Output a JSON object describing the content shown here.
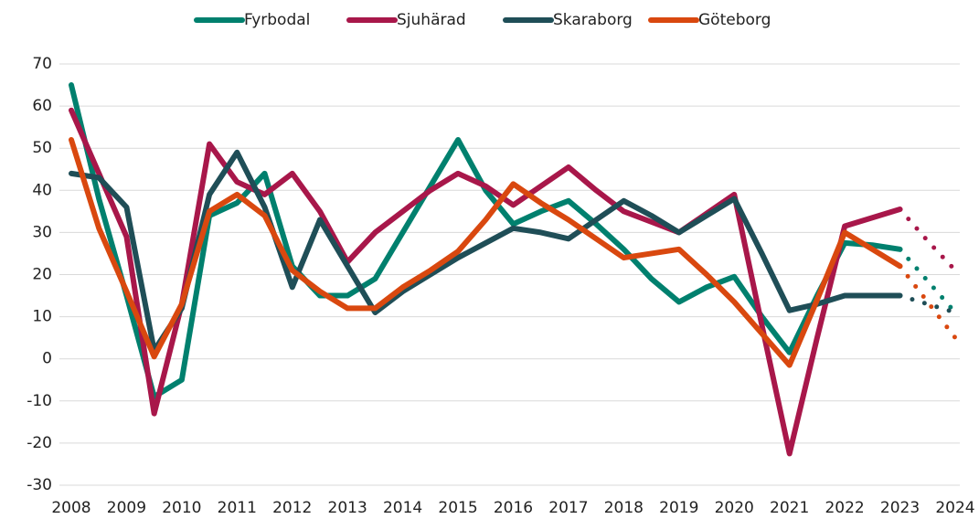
{
  "chart_data": {
    "type": "line",
    "x": [
      2008,
      2008.5,
      2009,
      2009.5,
      2010,
      2010.5,
      2011,
      2011.5,
      2012,
      2012.5,
      2013,
      2013.5,
      2014,
      2014.5,
      2015,
      2015.5,
      2016,
      2016.5,
      2017,
      2017.5,
      2018,
      2018.5,
      2019,
      2019.5,
      2020,
      2020.5,
      2021,
      2021.5,
      2022,
      2022.5,
      2023,
      2023.5,
      2024
    ],
    "series": [
      {
        "name": "Fyrbodal",
        "color": "#00806e",
        "values": [
          65,
          38,
          15,
          -9,
          -5,
          34,
          37,
          44,
          22,
          15,
          15,
          19,
          30,
          41,
          52,
          40,
          32,
          35,
          37.5,
          32,
          26,
          19,
          13.5,
          17,
          19.5,
          10,
          1.5,
          15,
          27.5,
          27,
          26,
          18.5,
          11
        ]
      },
      {
        "name": "Sjuhärad",
        "color": "#a8174a",
        "values": [
          59,
          44,
          29,
          -13,
          13,
          51,
          42,
          39,
          44,
          35,
          23,
          30,
          35,
          40,
          44,
          41,
          36.5,
          41,
          45.5,
          40,
          35,
          32.5,
          30,
          34.5,
          39,
          8,
          -22.5,
          5,
          31.5,
          33.5,
          35.5,
          28,
          21
        ]
      },
      {
        "name": "Skaraborg",
        "color": "#1f4e57",
        "values": [
          44,
          43,
          36,
          2,
          12,
          39,
          49,
          36,
          17,
          33,
          22,
          11,
          16,
          20,
          24,
          27.5,
          31,
          30,
          28.5,
          33,
          37.5,
          34,
          30,
          34,
          38,
          25,
          11.5,
          13,
          15,
          15,
          15,
          13,
          11
        ]
      },
      {
        "name": "Göteborg",
        "color": "#d9480f",
        "values": [
          52,
          31,
          16,
          0.5,
          13,
          35,
          39,
          34,
          21,
          16,
          12,
          12,
          17,
          21,
          25.5,
          33,
          41.5,
          37,
          33,
          28.5,
          24,
          25,
          26,
          20,
          13.5,
          6,
          -1.5,
          14,
          30,
          26,
          22,
          13.5,
          5
        ]
      }
    ],
    "forecast_from": 2023,
    "xlim": [
      2008,
      2024
    ],
    "xticks": [
      2008,
      2009,
      2010,
      2011,
      2012,
      2013,
      2014,
      2015,
      2016,
      2017,
      2018,
      2019,
      2020,
      2021,
      2022,
      2023,
      2024
    ],
    "ylim": [
      -30,
      70
    ],
    "yticks": [
      -30,
      -20,
      -10,
      0,
      10,
      20,
      30,
      40,
      50,
      60,
      70
    ],
    "grid": true,
    "legend": "top"
  }
}
